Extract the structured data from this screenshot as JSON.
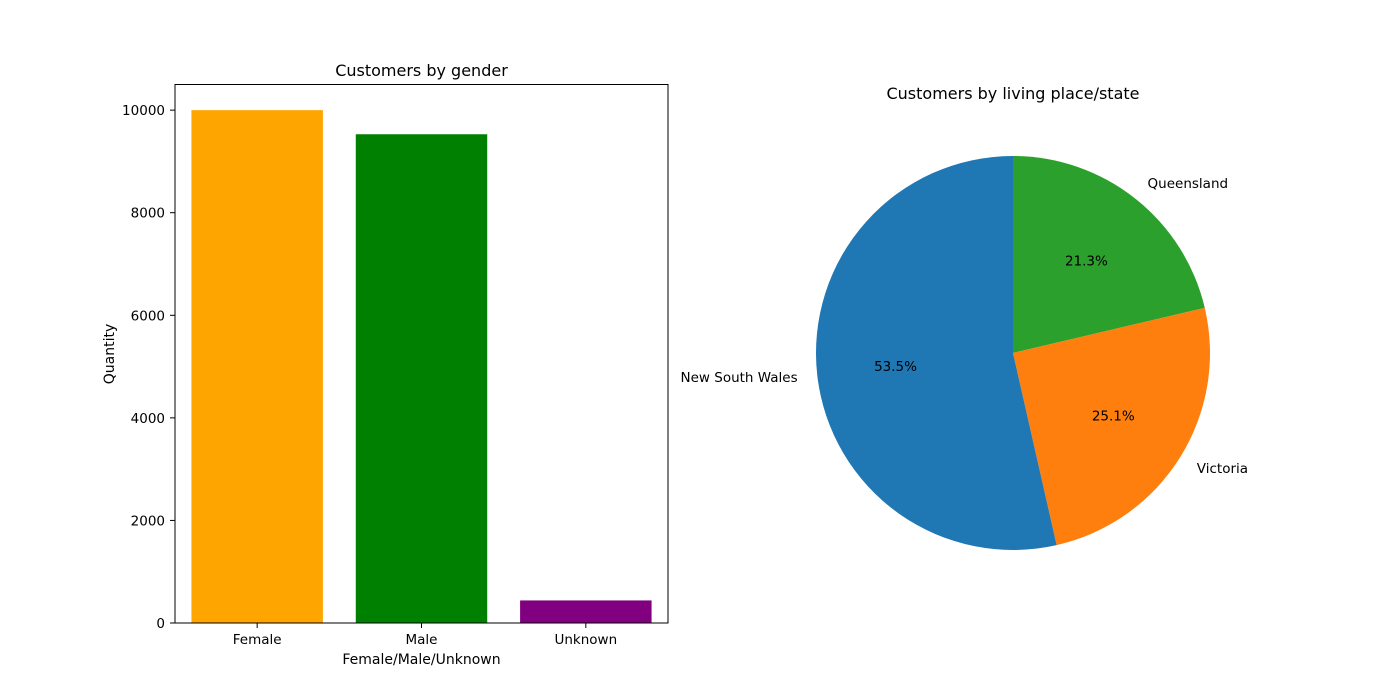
{
  "chart_data": [
    {
      "type": "bar",
      "title": "Customers by gender",
      "xlabel": "Female/Male/Unknown",
      "ylabel": "Quantity",
      "categories": [
        "Female",
        "Male",
        "Unknown"
      ],
      "values": [
        10000,
        9530,
        440
      ],
      "colors": [
        "#ffa500",
        "#008000",
        "#800080"
      ],
      "ylim": [
        0,
        10500
      ],
      "yticks": [
        0,
        2000,
        4000,
        6000,
        8000,
        10000
      ],
      "ytick_labels": [
        "0",
        "2000",
        "4000",
        "6000",
        "8000",
        "10000"
      ],
      "grid": false
    },
    {
      "type": "pie",
      "title": "Customers by living place/state",
      "labels": [
        "Queensland",
        "Victoria",
        "New South Wales"
      ],
      "values": [
        21.3,
        25.1,
        53.5
      ],
      "pct_labels": [
        "21.3%",
        "25.1%",
        "53.5%"
      ],
      "colors": [
        "#2ca02c",
        "#ff7f0e",
        "#1f77b4"
      ],
      "start_angle_deg": 90,
      "direction": "clockwise"
    }
  ]
}
